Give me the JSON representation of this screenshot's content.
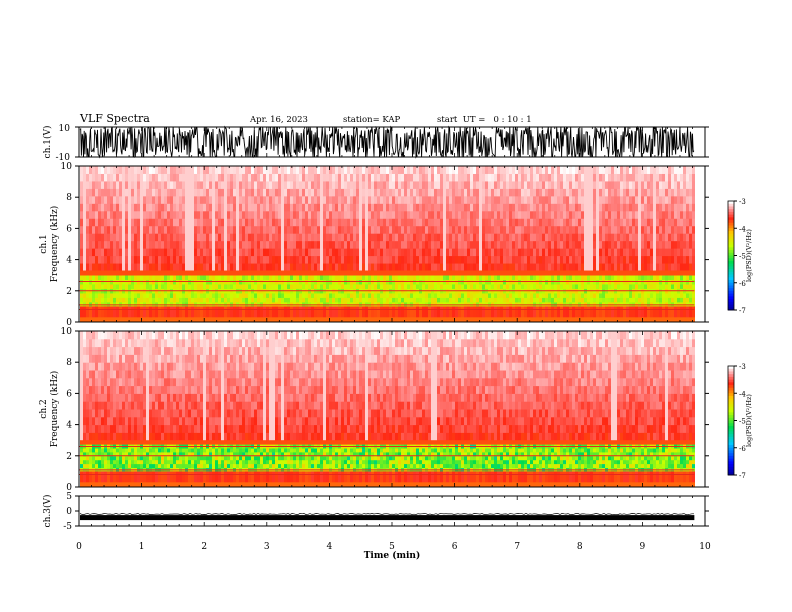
{
  "header": {
    "title": "VLF Spectra",
    "date": "Apr. 16, 2023",
    "station": "station= KAP",
    "start_time": "start  UT =   0 : 10 : 1"
  },
  "chart_data": [
    {
      "id": "ch1-waveform",
      "type": "line",
      "ylabel": "ch.1(V)",
      "ylim": [
        -10,
        10
      ],
      "yticks": [
        "10",
        "-10"
      ],
      "description_of_values": "dense noisy waveform spanning roughly -10 to 10 V",
      "xlim": [
        0,
        10
      ]
    },
    {
      "id": "ch1-spectrogram",
      "type": "heatmap",
      "ylabel": "ch.1\nFrequency (kHz)",
      "ylabel_lines": [
        "ch.1",
        "Frequency  (kHz)"
      ],
      "ylim": [
        0,
        10
      ],
      "yticks": [
        "0",
        "2",
        "4",
        "6",
        "8",
        "10"
      ],
      "xlim": [
        0,
        10
      ],
      "data_end_minute": 9.83,
      "colorbar": {
        "label": "log(PSD)(V²/Hz)",
        "range": [
          -7,
          -3
        ],
        "ticks": [
          "-3",
          "-4",
          "-5",
          "-6",
          "-7"
        ]
      },
      "bands_khz": [
        {
          "from": 0,
          "to": 0.3,
          "level": -3.2
        },
        {
          "from": 0.3,
          "to": 1.0,
          "level": -3.6
        },
        {
          "from": 1.0,
          "to": 3.3,
          "level": -4.3
        },
        {
          "from": 3.3,
          "to": 10,
          "level": -3.4
        }
      ]
    },
    {
      "id": "ch2-spectrogram",
      "type": "heatmap",
      "ylabel_lines": [
        "ch.2",
        "Frequency  (kHz)"
      ],
      "ylim": [
        0,
        10
      ],
      "yticks": [
        "0",
        "2",
        "4",
        "6",
        "8",
        "10"
      ],
      "xlim": [
        0,
        10
      ],
      "data_end_minute": 9.83,
      "colorbar": {
        "label": "log(PSD)(V²/Hz)",
        "range": [
          -7,
          -3
        ],
        "ticks": [
          "-3",
          "-4",
          "-5",
          "-6",
          "-7"
        ]
      },
      "bands_khz": [
        {
          "from": 0,
          "to": 0.3,
          "level": -3.2
        },
        {
          "from": 0.3,
          "to": 1.0,
          "level": -3.7
        },
        {
          "from": 1.0,
          "to": 3.0,
          "level": -4.6
        },
        {
          "from": 3.0,
          "to": 10,
          "level": -3.4
        }
      ]
    },
    {
      "id": "ch3-waveform",
      "type": "line",
      "ylabel": "ch.3(V)",
      "ylim": [
        -5,
        5
      ],
      "yticks": [
        "5",
        "0",
        "-5"
      ],
      "baseline_v": -2.2,
      "xlim": [
        0,
        10
      ],
      "xlabel": "Time  (min)",
      "xticks": [
        "0",
        "1",
        "2",
        "3",
        "4",
        "5",
        "6",
        "7",
        "8",
        "9",
        "10"
      ]
    }
  ]
}
